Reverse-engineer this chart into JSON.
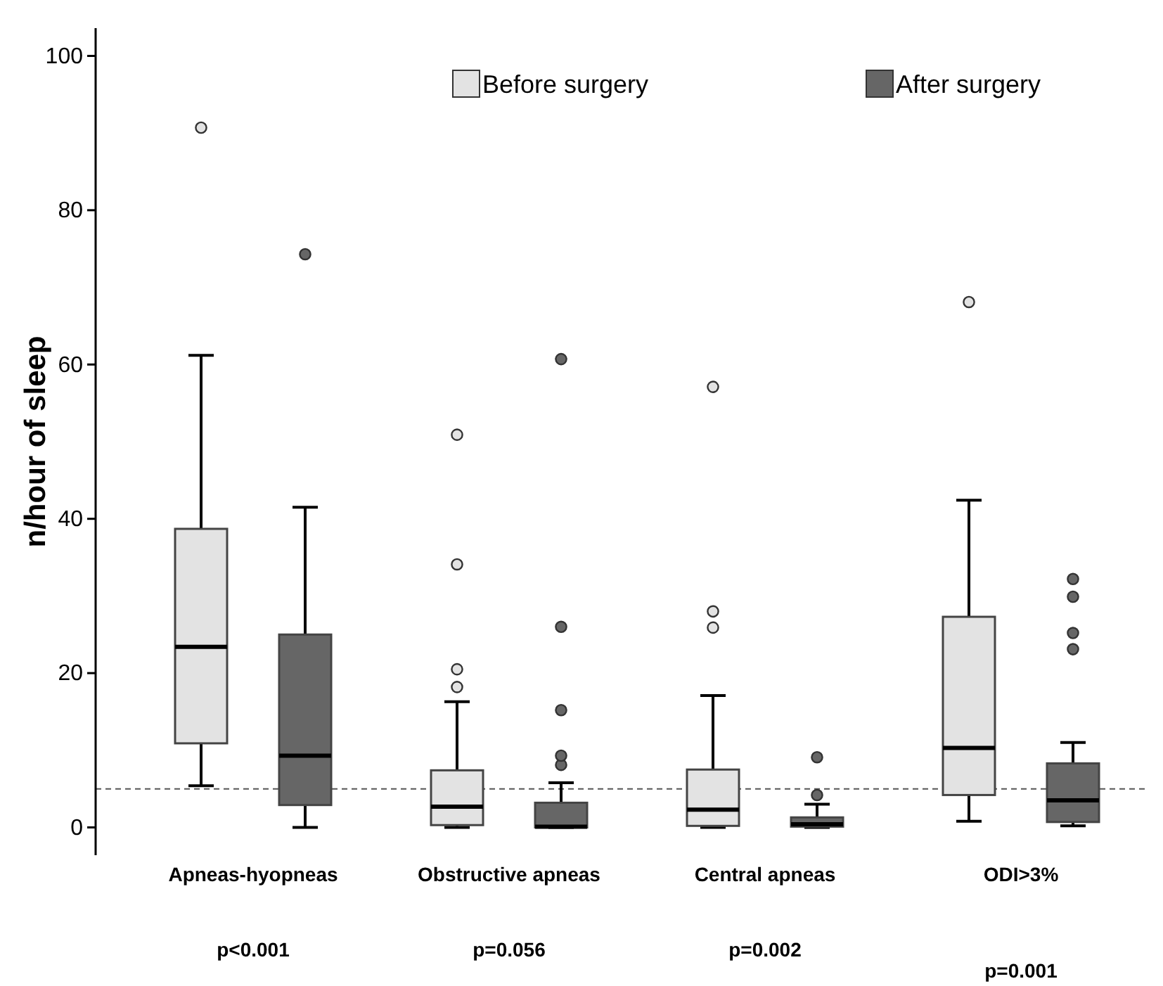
{
  "chart_data": {
    "type": "box",
    "ylabel": "n/hour of sleep",
    "categories": [
      "Apneas-hyopneas",
      "Obstructive apneas",
      "Central apneas",
      "ODI>3%"
    ],
    "ylim": [
      -3.6,
      103.6
    ],
    "yticks": [
      0,
      20,
      40,
      60,
      80,
      100
    ],
    "legend": "top",
    "series": [
      {
        "name": "Before surgery",
        "color": "#e3e3e3",
        "boxes": [
          {
            "low": 5.4,
            "q1": 10.9,
            "median": 23.4,
            "q3": 38.7,
            "high": 61.2,
            "outliers": [
              90.7
            ]
          },
          {
            "low": 0,
            "q1": 0.3,
            "median": 2.7,
            "q3": 7.4,
            "high": 16.3,
            "outliers": [
              18.2,
              20.5,
              34.1,
              50.9
            ]
          },
          {
            "low": 0,
            "q1": 0.2,
            "median": 2.3,
            "q3": 7.5,
            "high": 17.1,
            "outliers": [
              25.9,
              28.0,
              57.1
            ]
          },
          {
            "low": 0.8,
            "q1": 4.2,
            "median": 10.3,
            "q3": 27.3,
            "high": 42.4,
            "outliers": [
              68.1
            ]
          }
        ]
      },
      {
        "name": "After surgery",
        "color": "#666666",
        "boxes": [
          {
            "low": 0,
            "q1": 2.9,
            "median": 9.3,
            "q3": 25.0,
            "high": 41.5,
            "outliers": [
              74.3
            ]
          },
          {
            "low": 0,
            "q1": 0,
            "median": 0.1,
            "q3": 3.2,
            "high": 5.8,
            "outliers": [
              8.1,
              9.3,
              15.2,
              26.0,
              60.7
            ]
          },
          {
            "low": 0,
            "q1": 0.1,
            "median": 0.4,
            "q3": 1.3,
            "high": 3.0,
            "outliers": [
              4.2,
              9.1
            ]
          },
          {
            "low": 0.2,
            "q1": 0.7,
            "median": 3.5,
            "q3": 8.3,
            "high": 11.0,
            "outliers": [
              23.1,
              25.2,
              29.9,
              32.2
            ]
          }
        ]
      }
    ],
    "ref_lines": [
      {
        "axis": "y",
        "value": 5,
        "line_style": "dashed",
        "color": "#555555"
      }
    ],
    "annotations": [
      "p<0.001",
      "p=0.056",
      "p=0.002",
      "p=0.001"
    ]
  }
}
